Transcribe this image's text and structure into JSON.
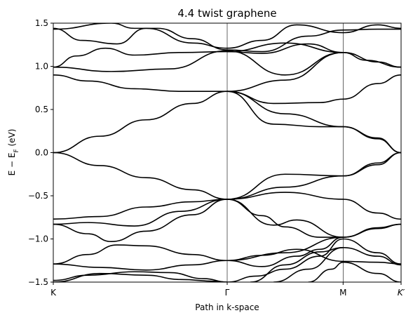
{
  "chart_data": {
    "type": "line",
    "title": "4.4 twist graphene",
    "xlabel": "Path in k-space",
    "ylabel": "E − E_F (eV)",
    "ylim": [
      -1.5,
      1.5
    ],
    "xlim": [
      0,
      3
    ],
    "xticks": [
      {
        "label": "K",
        "x": 0
      },
      {
        "label": "Γ",
        "x": 1.5
      },
      {
        "label": "M",
        "x": 2.5
      },
      {
        "label": "K′",
        "x": 3
      }
    ],
    "yticks": [
      -1.5,
      -1.0,
      -0.5,
      0.0,
      0.5,
      1.0,
      1.5
    ],
    "ytick_labels": [
      "−1.5",
      "−1.0",
      "−0.5",
      "0.0",
      "0.5",
      "1.0",
      "1.5"
    ],
    "vertical_lines_at": [
      1.5,
      2.5
    ],
    "grid": false,
    "legend": "none",
    "line_color": "#000000",
    "series": [
      {
        "x": [
          0,
          0.4,
          0.8,
          1.2,
          1.5,
          2.0,
          2.5,
          2.8,
          3.0
        ],
        "y": [
          0.0,
          0.19,
          0.38,
          0.57,
          0.71,
          0.45,
          0.3,
          0.16,
          0.0
        ]
      },
      {
        "x": [
          0,
          0.4,
          0.8,
          1.2,
          1.5,
          2.0,
          2.5,
          2.8,
          3.0
        ],
        "y": [
          0.0,
          -0.15,
          -0.29,
          -0.43,
          -0.54,
          -0.4,
          -0.27,
          -0.14,
          0.0
        ]
      },
      {
        "x": [
          0,
          0.3,
          0.7,
          1.1,
          1.5,
          1.9,
          2.3,
          2.5,
          2.8,
          3.0
        ],
        "y": [
          0.9,
          0.83,
          0.74,
          0.71,
          0.71,
          0.57,
          0.58,
          0.62,
          0.8,
          0.9
        ]
      },
      {
        "x": [
          0,
          0.5,
          1.0,
          1.5,
          2.0,
          2.5,
          2.7,
          3.0
        ],
        "y": [
          0.99,
          0.94,
          0.97,
          1.18,
          0.9,
          1.16,
          1.07,
          0.99
        ]
      },
      {
        "x": [
          0,
          0.2,
          0.45,
          0.7,
          1.1,
          1.5,
          2.0,
          2.5
        ],
        "y": [
          0.99,
          1.12,
          1.21,
          1.13,
          1.16,
          1.17,
          1.27,
          1.16
        ]
      },
      {
        "x": [
          0,
          0.25,
          0.55,
          0.8,
          1.2,
          1.5,
          1.8,
          2.1,
          2.5,
          2.8,
          3.0
        ],
        "y": [
          1.44,
          1.3,
          1.26,
          1.44,
          1.27,
          1.21,
          1.3,
          1.48,
          1.39,
          1.48,
          1.44
        ]
      },
      {
        "x": [
          0,
          0.5,
          0.7,
          0.9,
          1.2,
          1.5,
          1.8,
          2.2,
          2.5,
          2.8,
          3.0
        ],
        "y": [
          1.43,
          1.5,
          1.44,
          1.44,
          1.32,
          1.19,
          1.17,
          1.35,
          1.42,
          1.43,
          1.43
        ]
      },
      {
        "x": [
          1.5,
          1.9,
          2.3,
          2.5,
          2.8,
          3.0
        ],
        "y": [
          0.71,
          0.33,
          0.3,
          0.3,
          0.17,
          0.0
        ]
      },
      {
        "x": [
          1.5,
          2.0,
          2.5,
          2.8,
          3.0
        ],
        "y": [
          0.71,
          0.84,
          1.16,
          1.05,
          0.99
        ]
      },
      {
        "x": [
          1.5,
          1.8,
          2.2,
          2.5
        ],
        "y": [
          1.17,
          1.15,
          1.26,
          1.16
        ]
      },
      {
        "x": [
          0,
          0.4,
          0.8,
          1.2,
          1.5,
          2.0,
          2.5,
          2.8,
          3.0
        ],
        "y": [
          -0.77,
          -0.74,
          -0.63,
          -0.57,
          -0.54,
          -0.46,
          -0.54,
          -0.7,
          -0.77
        ]
      },
      {
        "x": [
          0,
          0.3,
          0.7,
          1.1,
          1.5,
          2.0,
          2.5,
          2.8,
          3.0
        ],
        "y": [
          -0.83,
          -0.81,
          -0.85,
          -0.68,
          -0.54,
          -0.25,
          -0.27,
          -0.12,
          0.0
        ]
      },
      {
        "x": [
          1.5,
          1.9,
          2.1,
          2.5,
          2.8,
          3.0
        ],
        "y": [
          -0.54,
          -0.84,
          -0.78,
          -0.98,
          -0.88,
          -0.83
        ]
      },
      {
        "x": [
          1.5,
          1.8,
          2.0,
          2.3,
          2.5
        ],
        "y": [
          -0.54,
          -0.73,
          -0.86,
          -0.98,
          -0.98
        ]
      },
      {
        "x": [
          0,
          0.3,
          0.5,
          0.8,
          1.2,
          1.5
        ],
        "y": [
          -0.83,
          -0.94,
          -1.03,
          -0.91,
          -0.72,
          -0.54
        ]
      },
      {
        "x": [
          0,
          0.3,
          0.55,
          0.8,
          1.2,
          1.5
        ],
        "y": [
          -1.29,
          -1.18,
          -1.07,
          -1.08,
          -1.18,
          -1.25
        ]
      },
      {
        "x": [
          0,
          0.4,
          0.8,
          1.2,
          1.5,
          2.0,
          2.5,
          2.8,
          3.0
        ],
        "y": [
          -1.29,
          -1.33,
          -1.36,
          -1.3,
          -1.25,
          -1.16,
          -0.98,
          -0.87,
          -0.83
        ]
      },
      {
        "x": [
          0,
          0.3,
          0.7,
          1.0,
          1.3,
          1.5
        ],
        "y": [
          -1.48,
          -1.42,
          -1.38,
          -1.39,
          -1.46,
          -1.5
        ]
      },
      {
        "x": [
          0,
          0.4,
          0.8,
          1.1,
          1.4,
          1.5
        ],
        "y": [
          -1.5,
          -1.4,
          -1.42,
          -1.47,
          -1.49,
          -1.5
        ]
      },
      {
        "x": [
          1.5,
          1.8,
          2.1,
          2.5,
          2.8,
          3.0
        ],
        "y": [
          -1.25,
          -1.19,
          -1.12,
          -1.26,
          -1.27,
          -1.29
        ]
      },
      {
        "x": [
          1.5,
          1.8,
          2.1,
          2.3,
          2.5
        ],
        "y": [
          -1.25,
          -1.32,
          -1.2,
          -1.12,
          -0.98
        ]
      },
      {
        "x": [
          1.5,
          1.75,
          2.0,
          2.3,
          2.5,
          2.8,
          3.0
        ],
        "y": [
          -1.5,
          -1.43,
          -1.35,
          -1.2,
          -1.0,
          -1.16,
          -1.29
        ]
      },
      {
        "x": [
          1.7,
          2.0,
          2.3,
          2.5
        ],
        "y": [
          -1.5,
          -1.3,
          -1.15,
          -1.1
        ]
      },
      {
        "x": [
          1.9,
          2.2,
          2.5,
          2.8,
          3.0
        ],
        "y": [
          -1.5,
          -1.35,
          -1.1,
          -1.2,
          -1.3
        ]
      },
      {
        "x": [
          2.2,
          2.4,
          2.5,
          2.8,
          3.0
        ],
        "y": [
          -1.5,
          -1.35,
          -1.27,
          -1.4,
          -1.5
        ]
      }
    ]
  }
}
